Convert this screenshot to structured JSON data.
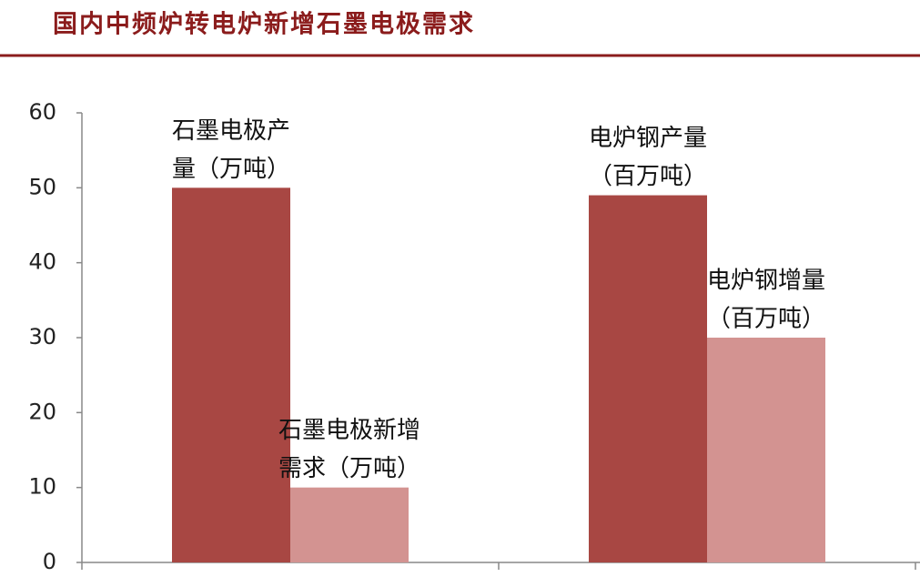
{
  "chart_data": {
    "type": "bar",
    "title": "国内中频炉转电炉新增石墨电极需求",
    "categories": [
      null,
      null
    ],
    "series": [
      {
        "color": "#a84743",
        "values": [
          50,
          49
        ],
        "labels": [
          [
            "石墨电极产",
            "量（万吨）"
          ],
          [
            "电炉钢产量",
            "（百万吨）"
          ]
        ]
      },
      {
        "color": "#d39391",
        "values": [
          10,
          30
        ],
        "labels": [
          [
            "石墨电极新增",
            "需求（万吨）"
          ],
          [
            "电炉钢增量",
            "（百万吨）"
          ]
        ]
      }
    ],
    "ylim": [
      0,
      60
    ],
    "yticks": [
      0,
      10,
      20,
      30,
      40,
      50,
      60
    ],
    "grid": false
  }
}
